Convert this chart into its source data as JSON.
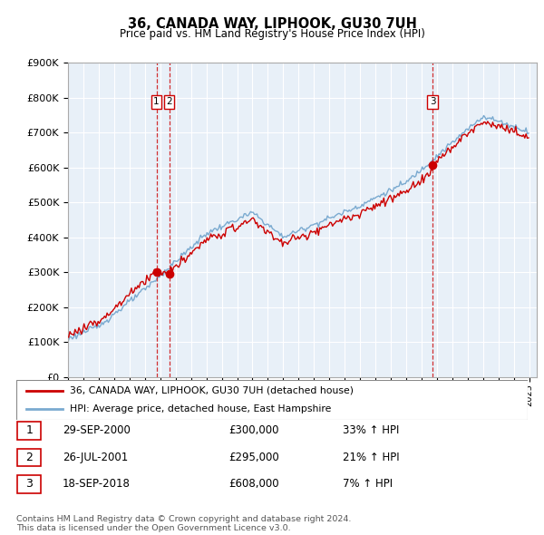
{
  "title": "36, CANADA WAY, LIPHOOK, GU30 7UH",
  "subtitle": "Price paid vs. HM Land Registry's House Price Index (HPI)",
  "ytick_values": [
    0,
    100000,
    200000,
    300000,
    400000,
    500000,
    600000,
    700000,
    800000,
    900000
  ],
  "ylim": [
    0,
    900000
  ],
  "xlim_start": 1995.0,
  "xlim_end": 2025.5,
  "red_color": "#cc0000",
  "blue_color": "#7aaad0",
  "bg_color": "#ffffff",
  "chart_bg": "#e8f0f8",
  "grid_color": "#ffffff",
  "legend_label_red": "36, CANADA WAY, LIPHOOK, GU30 7UH (detached house)",
  "legend_label_blue": "HPI: Average price, detached house, East Hampshire",
  "transaction_markers": [
    {
      "num": "1",
      "year": 2000.75,
      "price": 300000
    },
    {
      "num": "2",
      "year": 2001.58,
      "price": 295000
    },
    {
      "num": "3",
      "year": 2018.72,
      "price": 608000
    }
  ],
  "table_rows": [
    {
      "num": "1",
      "date": "29-SEP-2000",
      "price": "£300,000",
      "pct": "33% ↑ HPI"
    },
    {
      "num": "2",
      "date": "26-JUL-2001",
      "price": "£295,000",
      "pct": "21% ↑ HPI"
    },
    {
      "num": "3",
      "date": "18-SEP-2018",
      "price": "£608,000",
      "pct": "7% ↑ HPI"
    }
  ],
  "footer": "Contains HM Land Registry data © Crown copyright and database right 2024.\nThis data is licensed under the Open Government Licence v3.0."
}
